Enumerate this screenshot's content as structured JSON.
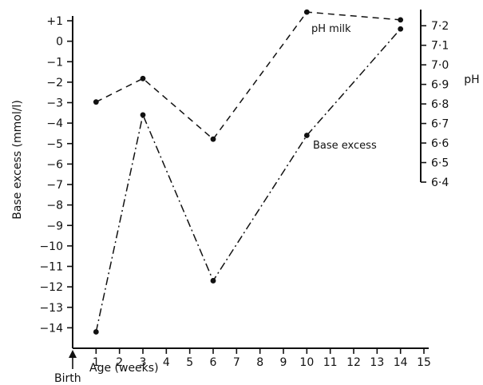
{
  "chart_data": {
    "type": "line",
    "title": "",
    "xlabel": "Age (weeks)",
    "ylabel_left": "Base excess (mmol/l)",
    "ylabel_right": "pH",
    "x_ticks": [
      1,
      2,
      3,
      4,
      5,
      6,
      7,
      8,
      9,
      10,
      11,
      12,
      13,
      14,
      15
    ],
    "xlim": [
      0,
      15
    ],
    "ylim_left": [
      -15,
      1
    ],
    "y_ticks_left": [
      {
        "value": 1,
        "label": "+1"
      },
      {
        "value": 0,
        "label": "0"
      },
      {
        "value": -1,
        "label": "−1"
      },
      {
        "value": -2,
        "label": "−2"
      },
      {
        "value": -3,
        "label": "−3"
      },
      {
        "value": -4,
        "label": "−4"
      },
      {
        "value": -5,
        "label": "−5"
      },
      {
        "value": -6,
        "label": "−6"
      },
      {
        "value": -7,
        "label": "−7"
      },
      {
        "value": -8,
        "label": "−8"
      },
      {
        "value": -9,
        "label": "−9"
      },
      {
        "value": -10,
        "label": "−10"
      },
      {
        "value": -11,
        "label": "−11"
      },
      {
        "value": -12,
        "label": "−12"
      },
      {
        "value": -13,
        "label": "−13"
      },
      {
        "value": -14,
        "label": "−14"
      }
    ],
    "ylim_right": [
      6.4,
      7.25
    ],
    "y_ticks_right": [
      {
        "value": 7.2,
        "label": "7·2"
      },
      {
        "value": 7.1,
        "label": "7·1"
      },
      {
        "value": 7.0,
        "label": "7·0"
      },
      {
        "value": 6.9,
        "label": "6·9"
      },
      {
        "value": 6.8,
        "label": "6·8"
      },
      {
        "value": 6.7,
        "label": "6·7"
      },
      {
        "value": 6.6,
        "label": "6·6"
      },
      {
        "value": 6.5,
        "label": "6·5"
      },
      {
        "value": 6.4,
        "label": "6·4"
      }
    ],
    "series": [
      {
        "name": "pH milk",
        "axis": "right",
        "style": "dashed",
        "x": [
          1,
          3,
          6,
          10,
          14
        ],
        "y": [
          6.81,
          6.93,
          6.62,
          7.27,
          7.23
        ]
      },
      {
        "name": "Base excess",
        "axis": "left",
        "style": "dash-dot",
        "x": [
          1,
          3,
          6,
          10,
          14
        ],
        "y": [
          -14.2,
          -3.6,
          -11.7,
          -4.6,
          0.6
        ]
      }
    ],
    "annotations": {
      "birth_label": "Birth",
      "birth_x": 0
    },
    "grid": false,
    "colors": {
      "line": "#111111",
      "background": "#ffffff"
    }
  }
}
